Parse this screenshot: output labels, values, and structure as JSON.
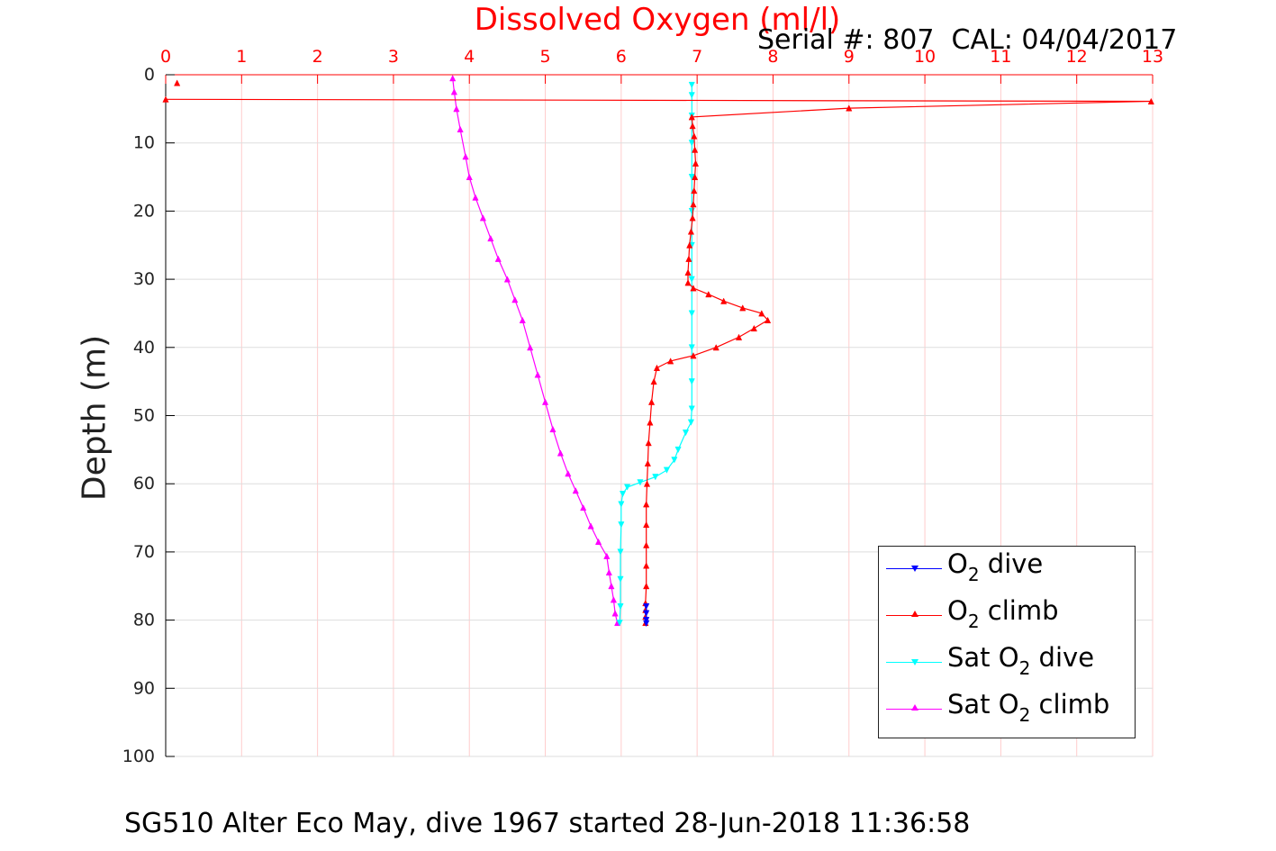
{
  "title": "Dissolved Oxygen (ml/l)",
  "serial_text": "Serial #: 807  CAL: 04/04/2017",
  "caption": "SG510 Alter Eco May, dive 1967 started 28-Jun-2018 11:36:58",
  "colors": {
    "o2_dive": "#0000ff",
    "o2_climb": "#ff0000",
    "sat_dive": "#00ffff",
    "sat_climb": "#ff00ff",
    "x_axis": "#ff0000",
    "y_axis": "#000000",
    "x_grid": "#ffcccc",
    "y_grid": "#dddddd"
  },
  "legend": {
    "items": [
      {
        "pre": "O",
        "sub": "2",
        "post": " dive",
        "color_key": "o2_dive",
        "marker": "triangle-down"
      },
      {
        "pre": "O",
        "sub": "2",
        "post": " climb",
        "color_key": "o2_climb",
        "marker": "triangle-up"
      },
      {
        "pre": "Sat O",
        "sub": "2",
        "post": " dive",
        "color_key": "sat_dive",
        "marker": "triangle-down"
      },
      {
        "pre": "Sat O",
        "sub": "2",
        "post": " climb",
        "color_key": "sat_climb",
        "marker": "triangle-up"
      }
    ]
  },
  "chart_data": {
    "type": "line",
    "title": "Dissolved Oxygen (ml/l)",
    "xlabel": "Dissolved Oxygen (ml/l)",
    "ylabel": "Depth (m)",
    "xlim": [
      0,
      13
    ],
    "ylim": [
      0,
      100
    ],
    "y_reversed": true,
    "x_axis_position": "top",
    "x_ticks": [
      0,
      1,
      2,
      3,
      4,
      5,
      6,
      7,
      8,
      9,
      10,
      11,
      12,
      13
    ],
    "y_ticks": [
      0,
      10,
      20,
      30,
      40,
      50,
      60,
      70,
      80,
      90,
      100
    ],
    "grid": true,
    "legend_position": "bottom-right",
    "series": [
      {
        "name": "O2 dive",
        "color_key": "o2_dive",
        "marker": "triangle-down",
        "points": [
          [
            6.33,
            78
          ],
          [
            6.33,
            79
          ],
          [
            6.33,
            80
          ],
          [
            6.33,
            80.5
          ]
        ]
      },
      {
        "name": "O2 climb",
        "color_key": "o2_climb",
        "marker": "triangle-up",
        "points": [
          [
            6.32,
            80.4
          ],
          [
            6.32,
            79.5
          ],
          [
            6.32,
            78.5
          ],
          [
            6.32,
            77.5
          ],
          [
            6.33,
            75
          ],
          [
            6.33,
            72
          ],
          [
            6.33,
            69
          ],
          [
            6.33,
            66
          ],
          [
            6.33,
            63
          ],
          [
            6.34,
            60
          ],
          [
            6.35,
            57
          ],
          [
            6.36,
            54
          ],
          [
            6.38,
            51
          ],
          [
            6.4,
            48
          ],
          [
            6.43,
            45
          ],
          [
            6.47,
            43
          ],
          [
            6.65,
            42
          ],
          [
            6.95,
            41.2
          ],
          [
            7.25,
            40
          ],
          [
            7.55,
            38.5
          ],
          [
            7.75,
            37.2
          ],
          [
            7.93,
            36
          ],
          [
            7.85,
            35
          ],
          [
            7.6,
            34.2
          ],
          [
            7.35,
            33.2
          ],
          [
            7.15,
            32.2
          ],
          [
            6.95,
            31.3
          ],
          [
            6.88,
            30.5
          ],
          [
            6.88,
            29
          ],
          [
            6.89,
            27
          ],
          [
            6.9,
            25
          ],
          [
            6.92,
            23
          ],
          [
            6.94,
            21
          ],
          [
            6.95,
            19
          ],
          [
            6.96,
            17
          ],
          [
            6.97,
            15
          ],
          [
            6.98,
            13
          ],
          [
            6.97,
            11
          ],
          [
            6.96,
            9
          ],
          [
            6.94,
            7.5
          ],
          [
            6.93,
            6.2
          ],
          [
            9.0,
            4.9
          ],
          [
            12.98,
            3.9
          ],
          [
            0,
            3.6
          ]
        ],
        "isolated_points": [
          [
            0.15,
            1.2
          ]
        ]
      },
      {
        "name": "Sat O2 dive",
        "color_key": "sat_dive",
        "marker": "triangle-down",
        "points": [
          [
            6.93,
            1.5
          ],
          [
            6.93,
            3
          ],
          [
            6.93,
            6
          ],
          [
            6.93,
            10
          ],
          [
            6.93,
            15
          ],
          [
            6.93,
            20
          ],
          [
            6.93,
            25
          ],
          [
            6.93,
            30
          ],
          [
            6.93,
            35
          ],
          [
            6.93,
            40
          ],
          [
            6.93,
            45
          ],
          [
            6.93,
            49
          ],
          [
            6.92,
            51
          ],
          [
            6.85,
            52.5
          ],
          [
            6.75,
            55
          ],
          [
            6.7,
            56.5
          ],
          [
            6.6,
            58
          ],
          [
            6.45,
            59
          ],
          [
            6.25,
            59.8
          ],
          [
            6.08,
            60.5
          ],
          [
            6.02,
            61.5
          ],
          [
            6.0,
            63
          ],
          [
            6.0,
            66
          ],
          [
            5.99,
            70
          ],
          [
            5.99,
            74
          ],
          [
            5.99,
            78
          ],
          [
            5.98,
            80.4
          ]
        ]
      },
      {
        "name": "Sat O2 climb",
        "color_key": "sat_climb",
        "marker": "triangle-up",
        "points": [
          [
            5.95,
            80.4
          ],
          [
            5.92,
            79
          ],
          [
            5.9,
            77
          ],
          [
            5.87,
            75
          ],
          [
            5.84,
            73
          ],
          [
            5.81,
            70.6
          ],
          [
            5.7,
            68.5
          ],
          [
            5.6,
            66.2
          ],
          [
            5.5,
            63.5
          ],
          [
            5.4,
            61
          ],
          [
            5.3,
            58.5
          ],
          [
            5.2,
            55.5
          ],
          [
            5.1,
            52
          ],
          [
            5.0,
            48
          ],
          [
            4.9,
            44
          ],
          [
            4.8,
            40
          ],
          [
            4.7,
            36
          ],
          [
            4.6,
            33
          ],
          [
            4.5,
            30
          ],
          [
            4.38,
            27
          ],
          [
            4.28,
            24
          ],
          [
            4.18,
            21
          ],
          [
            4.08,
            18
          ],
          [
            4.0,
            15
          ],
          [
            3.95,
            12
          ],
          [
            3.88,
            8
          ],
          [
            3.83,
            5
          ],
          [
            3.8,
            2.5
          ],
          [
            3.78,
            0.5
          ]
        ]
      }
    ]
  }
}
